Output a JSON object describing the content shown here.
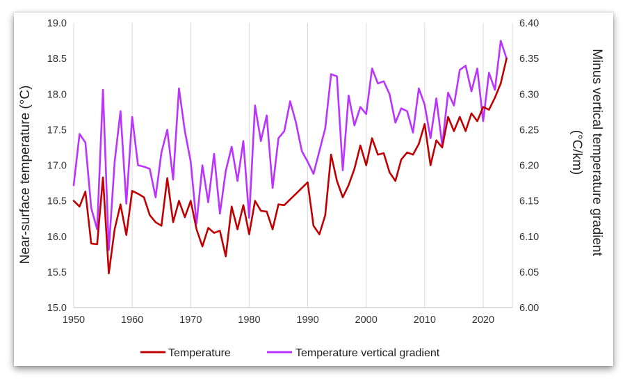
{
  "chart_data": {
    "type": "line",
    "x": [
      1950,
      1951,
      1952,
      1953,
      1954,
      1955,
      1956,
      1957,
      1958,
      1959,
      1960,
      1961,
      1962,
      1963,
      1964,
      1965,
      1966,
      1967,
      1968,
      1969,
      1970,
      1971,
      1972,
      1973,
      1974,
      1975,
      1976,
      1977,
      1978,
      1979,
      1980,
      1981,
      1982,
      1983,
      1984,
      1985,
      1986,
      1987,
      1988,
      1989,
      1990,
      1991,
      1992,
      1993,
      1994,
      1995,
      1996,
      1997,
      1998,
      1999,
      2000,
      2001,
      2002,
      2003,
      2004,
      2005,
      2006,
      2007,
      2008,
      2009,
      2010,
      2011,
      2012,
      2013,
      2014,
      2015,
      2016,
      2017,
      2018,
      2019,
      2020,
      2021,
      2022,
      2023,
      2024
    ],
    "xlim": [
      1950,
      2025
    ],
    "xticks": [
      "1950",
      "1960",
      "1970",
      "1980",
      "1990",
      "2000",
      "2010",
      "2020"
    ],
    "ylabel_left": "Near-surface temperature (°C)",
    "ylim_left": [
      15.0,
      19.0
    ],
    "yticks_left": [
      "15.0",
      "15.5",
      "16.0",
      "16.5",
      "17.0",
      "17.5",
      "18.0",
      "18.5",
      "19.0"
    ],
    "ylabel_right_line1": "Minus vertical temperature gradient",
    "ylabel_right_line2": "(°C/km)",
    "ylim_right": [
      6.0,
      6.4
    ],
    "yticks_right": [
      "6.00",
      "6.05",
      "6.10",
      "6.15",
      "6.20",
      "6.25",
      "6.30",
      "6.35",
      "6.40"
    ],
    "grid": "vertical",
    "legend": "bottom",
    "series": [
      {
        "name": "Temperature",
        "axis": "left",
        "color": "#c00000",
        "values": [
          16.5,
          16.42,
          16.63,
          15.9,
          15.89,
          16.83,
          15.48,
          16.1,
          16.45,
          16.02,
          16.64,
          16.6,
          16.55,
          16.3,
          16.2,
          16.15,
          16.82,
          16.2,
          16.5,
          16.27,
          16.5,
          16.1,
          15.86,
          16.12,
          16.05,
          16.08,
          15.72,
          16.42,
          16.1,
          16.44,
          16.03,
          16.5,
          16.36,
          16.35,
          16.1,
          16.45,
          16.44,
          16.52,
          16.6,
          16.68,
          16.76,
          16.15,
          16.03,
          16.3,
          17.15,
          16.78,
          16.55,
          16.72,
          16.95,
          17.28,
          17.0,
          17.38,
          17.15,
          17.17,
          16.9,
          16.78,
          17.08,
          17.18,
          17.15,
          17.3,
          17.58,
          17.0,
          17.35,
          17.25,
          17.68,
          17.48,
          17.68,
          17.48,
          17.73,
          17.62,
          17.82,
          17.78,
          17.95,
          18.15,
          18.5
        ]
      },
      {
        "name": "Temperature vertical gradient",
        "axis": "right",
        "color": "#bb33ff",
        "values": [
          6.172,
          6.244,
          6.232,
          6.14,
          6.11,
          6.306,
          6.081,
          6.205,
          6.276,
          6.146,
          6.268,
          6.2,
          6.198,
          6.195,
          6.155,
          6.218,
          6.25,
          6.18,
          6.308,
          6.248,
          6.205,
          6.118,
          6.2,
          6.148,
          6.216,
          6.132,
          6.192,
          6.226,
          6.178,
          6.234,
          6.126,
          6.284,
          6.234,
          6.27,
          6.168,
          6.238,
          6.248,
          6.29,
          6.26,
          6.22,
          6.205,
          6.188,
          6.22,
          6.252,
          6.328,
          6.325,
          6.193,
          6.298,
          6.256,
          6.282,
          6.272,
          6.336,
          6.315,
          6.318,
          6.3,
          6.26,
          6.28,
          6.276,
          6.246,
          6.308,
          6.285,
          6.238,
          6.294,
          6.228,
          6.302,
          6.284,
          6.334,
          6.34,
          6.304,
          6.336,
          6.262,
          6.33,
          6.306,
          6.375,
          6.35
        ]
      }
    ]
  }
}
